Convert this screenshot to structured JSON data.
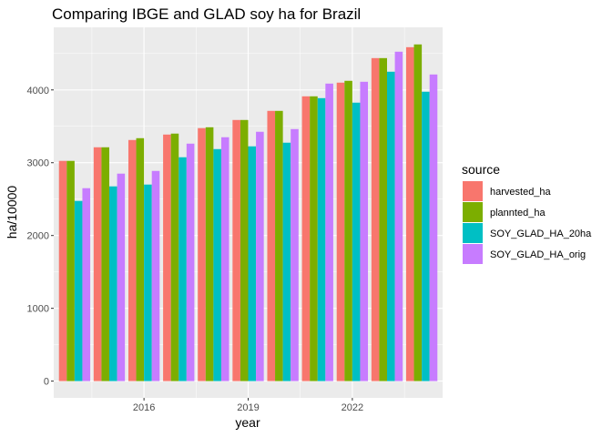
{
  "chart_data": {
    "type": "bar",
    "title": "Comparing IBGE and GLAD soy ha for Brazil",
    "xlabel": "year",
    "ylabel": "ha/10000",
    "x": [
      2014,
      2015,
      2016,
      2017,
      2018,
      2019,
      2020,
      2021,
      2022,
      2023,
      2024
    ],
    "x_ticks": [
      "2016",
      "2019",
      "2022"
    ],
    "x_tick_values": [
      2016,
      2019,
      2022
    ],
    "y_ticks": [
      "0",
      "1000",
      "2000",
      "3000",
      "4000"
    ],
    "y_tick_values": [
      0,
      1000,
      2000,
      3000,
      4000
    ],
    "ylim": [
      -230,
      4860
    ],
    "grid": true,
    "legend": {
      "title": "source",
      "placement": "right"
    },
    "series": [
      {
        "name": "harvested_ha",
        "color": "#F8766D",
        "values": [
          3025,
          3212,
          3312,
          3387,
          3475,
          3587,
          3712,
          3912,
          4100,
          4437,
          4587
        ]
      },
      {
        "name": "plannted_ha",
        "color": "#7CAE00",
        "values": [
          3025,
          3212,
          3337,
          3400,
          3487,
          3587,
          3712,
          3912,
          4125,
          4437,
          4625
        ]
      },
      {
        "name": "SOY_GLAD_HA_20ha",
        "color": "#00BFC4",
        "values": [
          2475,
          2675,
          2700,
          3075,
          3187,
          3225,
          3275,
          3887,
          3825,
          4250,
          3975
        ]
      },
      {
        "name": "SOY_GLAD_HA_orig",
        "color": "#C77CFF",
        "values": [
          2650,
          2850,
          2887,
          3262,
          3350,
          3425,
          3462,
          4087,
          4112,
          4525,
          4212
        ]
      }
    ]
  }
}
